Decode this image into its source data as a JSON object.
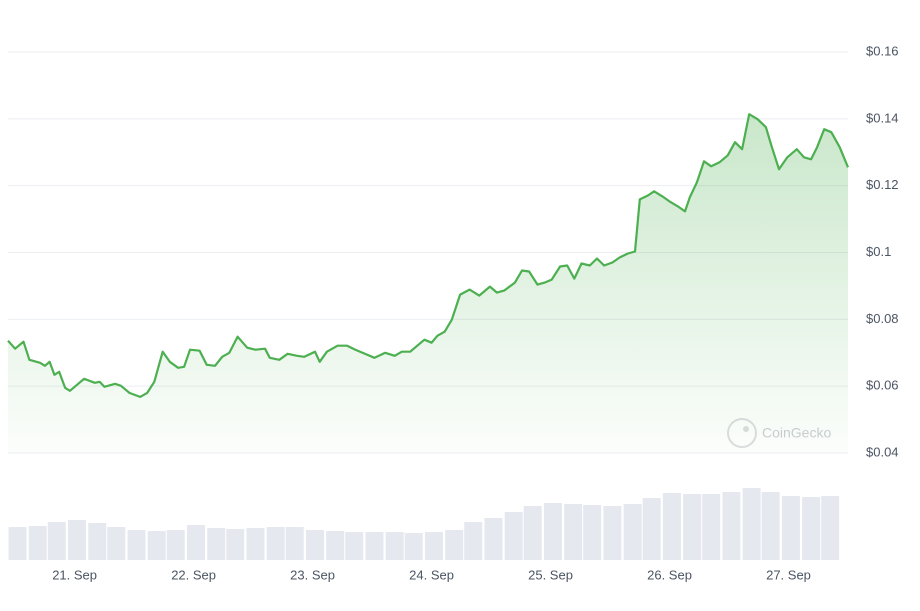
{
  "chart_data": [
    {
      "type": "line",
      "color": "#4caf50",
      "area": true,
      "grid": true,
      "watermark": "CoinGecko",
      "x": [
        20.44,
        20.5,
        20.57,
        20.62,
        20.71,
        20.75,
        20.79,
        20.83,
        20.87,
        20.92,
        20.96,
        21.03,
        21.08,
        21.17,
        21.21,
        21.25,
        21.34,
        21.39,
        21.46,
        21.55,
        21.61,
        21.67,
        21.74,
        21.8,
        21.87,
        21.92,
        21.97,
        22.05,
        22.11,
        22.18,
        22.24,
        22.3,
        22.37,
        22.45,
        22.52,
        22.6,
        22.64,
        22.72,
        22.79,
        22.87,
        22.93,
        23.02,
        23.06,
        23.12,
        23.21,
        23.29,
        23.36,
        23.44,
        23.52,
        23.61,
        23.69,
        23.75,
        23.82,
        23.88,
        23.94,
        24.0,
        24.05,
        24.11,
        24.17,
        24.24,
        24.32,
        24.4,
        24.49,
        24.55,
        24.61,
        24.7,
        24.76,
        24.82,
        24.89,
        24.95,
        25.01,
        25.08,
        25.14,
        25.2,
        25.26,
        25.33,
        25.39,
        25.45,
        25.52,
        25.58,
        25.65,
        25.71,
        25.75,
        25.82,
        25.87,
        25.94,
        26.0,
        26.07,
        26.13,
        26.17,
        26.23,
        26.29,
        26.35,
        26.42,
        26.49,
        26.55,
        26.61,
        26.67,
        26.74,
        26.81,
        26.86,
        26.92,
        26.99,
        27.07,
        27.13,
        27.19,
        27.24,
        27.3,
        27.36,
        27.43,
        27.5
      ],
      "values": [
        0.0736,
        0.0712,
        0.0733,
        0.0679,
        0.067,
        0.0661,
        0.0673,
        0.0634,
        0.0643,
        0.0595,
        0.0586,
        0.0607,
        0.0622,
        0.061,
        0.0613,
        0.0598,
        0.0607,
        0.0601,
        0.058,
        0.0568,
        0.058,
        0.0613,
        0.0703,
        0.0673,
        0.0655,
        0.0658,
        0.0709,
        0.0706,
        0.0664,
        0.0661,
        0.0688,
        0.07,
        0.0748,
        0.0715,
        0.0709,
        0.0712,
        0.0685,
        0.0679,
        0.0697,
        0.0691,
        0.0688,
        0.0703,
        0.0673,
        0.0703,
        0.0721,
        0.0721,
        0.0709,
        0.0697,
        0.0685,
        0.07,
        0.0691,
        0.0703,
        0.0703,
        0.0721,
        0.0739,
        0.073,
        0.0751,
        0.0763,
        0.0799,
        0.0874,
        0.0889,
        0.0871,
        0.0898,
        0.088,
        0.0886,
        0.091,
        0.0946,
        0.0943,
        0.0904,
        0.091,
        0.0919,
        0.0958,
        0.0961,
        0.0922,
        0.0967,
        0.0961,
        0.0982,
        0.0961,
        0.097,
        0.0985,
        0.0997,
        0.1003,
        0.1159,
        0.1171,
        0.1183,
        0.1168,
        0.1153,
        0.1138,
        0.1123,
        0.1165,
        0.121,
        0.1273,
        0.1258,
        0.127,
        0.1291,
        0.133,
        0.1309,
        0.1414,
        0.1399,
        0.1375,
        0.1315,
        0.1249,
        0.1285,
        0.1309,
        0.1285,
        0.1279,
        0.1315,
        0.1369,
        0.136,
        0.1315,
        0.1255
      ],
      "xlim": [
        20.44,
        27.5
      ],
      "xticks": [
        {
          "value": 21,
          "label": "21. Sep"
        },
        {
          "value": 22,
          "label": "22. Sep"
        },
        {
          "value": 23,
          "label": "23. Sep"
        },
        {
          "value": 24,
          "label": "24. Sep"
        },
        {
          "value": 25,
          "label": "25. Sep"
        },
        {
          "value": 26,
          "label": "26. Sep"
        },
        {
          "value": 27,
          "label": "27. Sep"
        }
      ],
      "ylim": [
        0.04,
        0.16
      ],
      "yticks": [
        {
          "value": 0.04,
          "label": "$0.04"
        },
        {
          "value": 0.06,
          "label": "$0.06"
        },
        {
          "value": 0.08,
          "label": "$0.08"
        },
        {
          "value": 0.1,
          "label": "$0.1"
        },
        {
          "value": 0.12,
          "label": "$0.12"
        },
        {
          "value": 0.14,
          "label": "$0.14"
        },
        {
          "value": 0.16,
          "label": "$0.16"
        }
      ]
    },
    {
      "type": "bar",
      "color": "#e6e8ef",
      "x": [
        20.52,
        20.69,
        20.85,
        21.02,
        21.19,
        21.35,
        21.52,
        21.69,
        21.85,
        22.02,
        22.19,
        22.35,
        22.52,
        22.69,
        22.85,
        23.02,
        23.19,
        23.35,
        23.52,
        23.69,
        23.85,
        24.02,
        24.19,
        24.35,
        24.52,
        24.69,
        24.85,
        25.02,
        25.19,
        25.35,
        25.52,
        25.69,
        25.85,
        26.02,
        26.19,
        26.35,
        26.52,
        26.69,
        26.85,
        27.02,
        27.19,
        27.35
      ],
      "values": [
        33,
        34,
        38,
        40,
        37,
        33,
        30,
        29,
        30,
        35,
        32,
        31,
        32,
        33,
        33,
        30,
        29,
        28,
        28,
        28,
        27,
        28,
        30,
        38,
        42,
        48,
        54,
        57,
        56,
        55,
        54,
        56,
        62,
        67,
        66,
        66,
        68,
        72,
        68,
        64,
        63,
        64
      ],
      "xlim": [
        20.44,
        27.5
      ],
      "ylim": [
        0,
        100
      ]
    }
  ]
}
